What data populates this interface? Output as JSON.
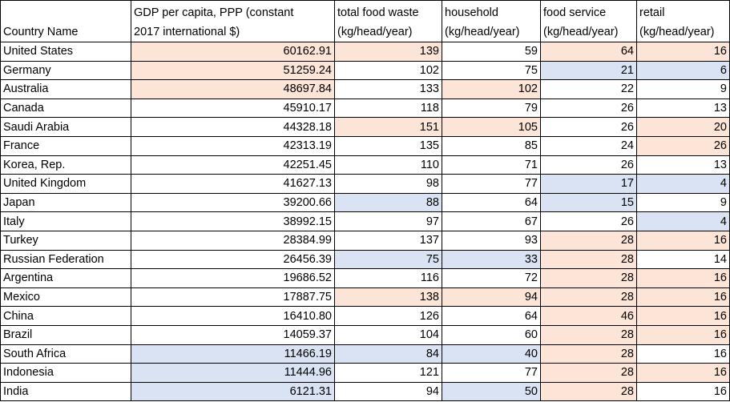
{
  "table": {
    "header": [
      [
        "Country Name"
      ],
      [
        "GDP per capita, PPP (constant",
        "2017 international $)"
      ],
      [
        "total food waste",
        "(kg/head/year)"
      ],
      [
        "household",
        "(kg/head/year)"
      ],
      [
        "food service",
        "(kg/head/year)"
      ],
      [
        "retail",
        "(kg/head/year)"
      ]
    ],
    "rows": [
      {
        "cells": [
          "United States",
          "60162.91",
          "139",
          "59",
          "64",
          "16"
        ],
        "fills": [
          null,
          "#fce4d6",
          "#fce4d6",
          null,
          "#fce4d6",
          "#fce4d6"
        ]
      },
      {
        "cells": [
          "Germany",
          "51259.24",
          "102",
          "75",
          "21",
          "6"
        ],
        "fills": [
          null,
          "#fce4d6",
          null,
          null,
          "#dae3f3",
          "#dae3f3"
        ]
      },
      {
        "cells": [
          "Australia",
          "48697.84",
          "133",
          "102",
          "22",
          "9"
        ],
        "fills": [
          null,
          "#fce4d6",
          null,
          "#fce4d6",
          null,
          null
        ]
      },
      {
        "cells": [
          "Canada",
          "45910.17",
          "118",
          "79",
          "26",
          "13"
        ],
        "fills": [
          null,
          null,
          null,
          null,
          null,
          null
        ]
      },
      {
        "cells": [
          "Saudi Arabia",
          "44328.18",
          "151",
          "105",
          "26",
          "20"
        ],
        "fills": [
          null,
          null,
          "#fce4d6",
          "#fce4d6",
          null,
          "#fce4d6"
        ]
      },
      {
        "cells": [
          "France",
          "42313.19",
          "135",
          "85",
          "24",
          "26"
        ],
        "fills": [
          null,
          null,
          null,
          null,
          null,
          "#fce4d6"
        ]
      },
      {
        "cells": [
          "Korea, Rep.",
          "42251.45",
          "110",
          "71",
          "26",
          "13"
        ],
        "fills": [
          null,
          null,
          null,
          null,
          null,
          null
        ]
      },
      {
        "cells": [
          "United Kingdom",
          "41627.13",
          "98",
          "77",
          "17",
          "4"
        ],
        "fills": [
          null,
          null,
          null,
          null,
          "#dae3f3",
          "#dae3f3"
        ]
      },
      {
        "cells": [
          "Japan",
          "39200.66",
          "88",
          "64",
          "15",
          "9"
        ],
        "fills": [
          null,
          null,
          "#dae3f3",
          null,
          "#dae3f3",
          null
        ]
      },
      {
        "cells": [
          "Italy",
          "38992.15",
          "97",
          "67",
          "26",
          "4"
        ],
        "fills": [
          null,
          null,
          null,
          null,
          null,
          "#dae3f3"
        ]
      },
      {
        "cells": [
          "Turkey",
          "28384.99",
          "137",
          "93",
          "28",
          "16"
        ],
        "fills": [
          null,
          null,
          null,
          null,
          "#fce4d6",
          "#fce4d6"
        ]
      },
      {
        "cells": [
          "Russian Federation",
          "26456.39",
          "75",
          "33",
          "28",
          "14"
        ],
        "fills": [
          null,
          null,
          "#dae3f3",
          "#dae3f3",
          "#fce4d6",
          null
        ]
      },
      {
        "cells": [
          "Argentina",
          "19686.52",
          "116",
          "72",
          "28",
          "16"
        ],
        "fills": [
          null,
          null,
          null,
          null,
          "#fce4d6",
          "#fce4d6"
        ]
      },
      {
        "cells": [
          "Mexico",
          "17887.75",
          "138",
          "94",
          "28",
          "16"
        ],
        "fills": [
          null,
          null,
          "#fce4d6",
          "#fce4d6",
          "#fce4d6",
          "#fce4d6"
        ]
      },
      {
        "cells": [
          "China",
          "16410.80",
          "126",
          "64",
          "46",
          "16"
        ],
        "fills": [
          null,
          null,
          null,
          null,
          "#fce4d6",
          "#fce4d6"
        ]
      },
      {
        "cells": [
          "Brazil",
          "14059.37",
          "104",
          "60",
          "28",
          "16"
        ],
        "fills": [
          null,
          null,
          null,
          null,
          "#fce4d6",
          "#fce4d6"
        ]
      },
      {
        "cells": [
          "South Africa",
          "11466.19",
          "84",
          "40",
          "28",
          "16"
        ],
        "fills": [
          null,
          "#dae3f3",
          "#dae3f3",
          "#dae3f3",
          "#fce4d6",
          null
        ]
      },
      {
        "cells": [
          "Indonesia",
          "11444.96",
          "121",
          "77",
          "28",
          "16"
        ],
        "fills": [
          null,
          "#dae3f3",
          null,
          null,
          "#fce4d6",
          "#fce4d6"
        ]
      },
      {
        "cells": [
          "India",
          "6121.31",
          "94",
          "50",
          "28",
          "16"
        ],
        "fills": [
          null,
          "#dae3f3",
          null,
          "#dae3f3",
          "#fce4d6",
          null
        ]
      }
    ]
  }
}
